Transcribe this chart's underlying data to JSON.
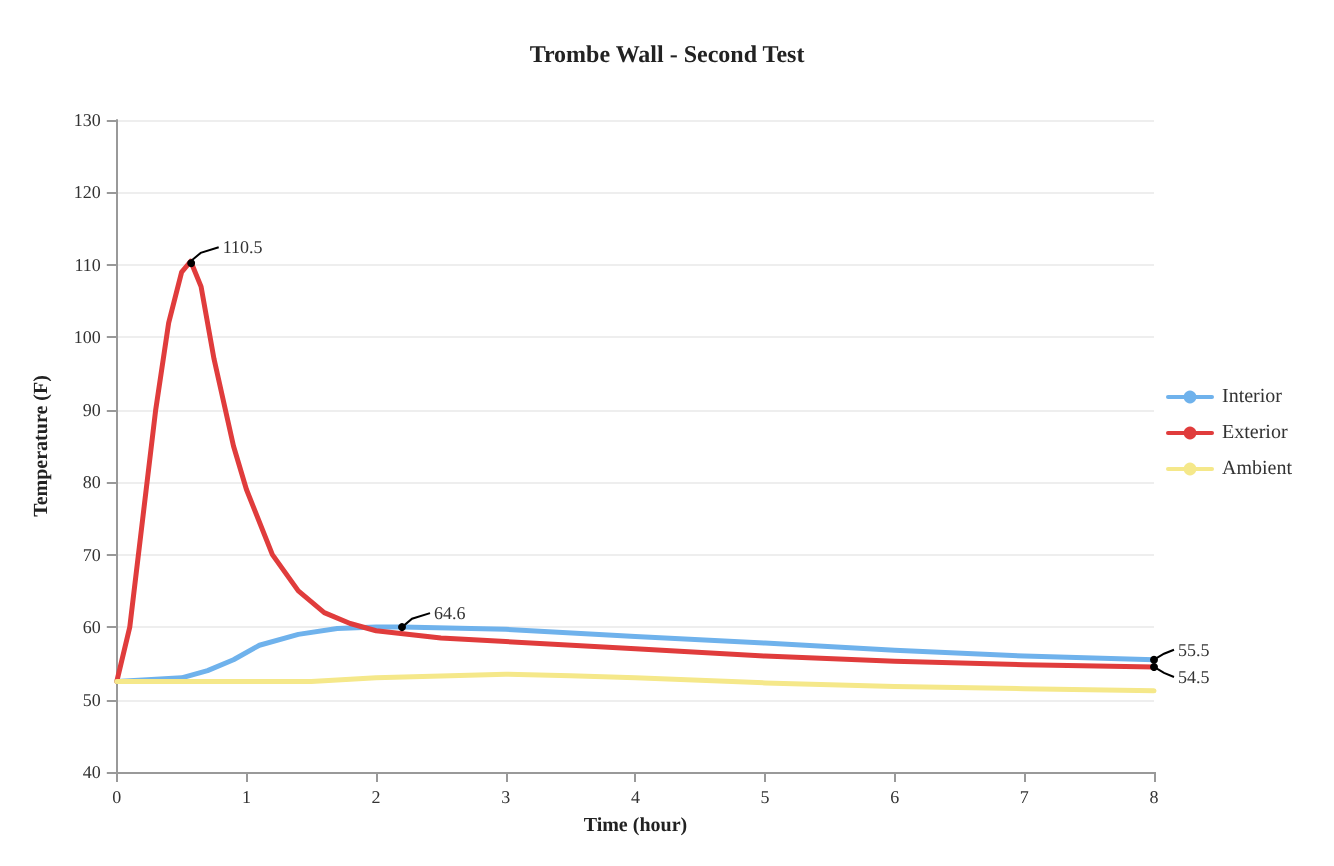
{
  "chart_data": {
    "type": "line",
    "title": "Trombe Wall - Second Test",
    "xlabel": "Time (hour)",
    "ylabel": "Temperature (F)",
    "xlim": [
      0,
      8
    ],
    "xticks": [
      0,
      1,
      2,
      3,
      4,
      5,
      6,
      7,
      8
    ],
    "ylim": [
      40,
      130
    ],
    "yticks": [
      40,
      50,
      60,
      70,
      80,
      90,
      100,
      110,
      120,
      130
    ],
    "grid": "y",
    "legend": "right",
    "marker": "none",
    "line_style": "solid",
    "series": [
      {
        "name": "Interior",
        "color": "#6fb2ec",
        "x": [
          0,
          0.5,
          0.7,
          0.9,
          1.1,
          1.4,
          1.7,
          2.0,
          2.2,
          3,
          4,
          5,
          6,
          7,
          8
        ],
        "values": [
          52.5,
          53,
          54,
          55.5,
          57.5,
          59,
          59.8,
          60,
          60,
          59.7,
          58.7,
          57.8,
          56.8,
          56,
          55.5
        ]
      },
      {
        "name": "Exterior",
        "color": "#e03c3c",
        "x": [
          0,
          0.1,
          0.2,
          0.3,
          0.4,
          0.5,
          0.57,
          0.65,
          0.75,
          0.9,
          1.0,
          1.2,
          1.4,
          1.6,
          1.8,
          2.0,
          2.5,
          3,
          4,
          5,
          6,
          7,
          8
        ],
        "values": [
          52.5,
          60,
          75,
          90,
          102,
          109,
          110.5,
          107,
          97,
          85,
          79,
          70,
          65,
          62,
          60.5,
          59.5,
          58.5,
          58,
          57,
          56,
          55.3,
          54.8,
          54.5
        ]
      },
      {
        "name": "Ambient",
        "color": "#f5e88a",
        "x": [
          0,
          1.5,
          2,
          3,
          3.5,
          4,
          5,
          6,
          7,
          8
        ],
        "values": [
          52.5,
          52.5,
          53,
          53.5,
          53.3,
          53,
          52.3,
          51.8,
          51.5,
          51.2
        ]
      }
    ],
    "annotations": [
      {
        "text": "110.5",
        "x": 0.57,
        "y": 110.5
      },
      {
        "text": "64.6",
        "x": 2.2,
        "y": 60
      },
      {
        "text": "55.5",
        "x": 8,
        "y": 55.5
      },
      {
        "text": "54.5",
        "x": 8,
        "y": 54.5
      }
    ]
  }
}
